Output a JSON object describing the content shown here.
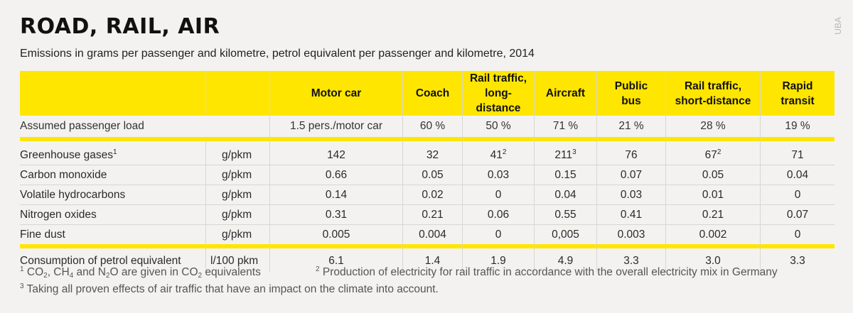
{
  "title": "ROAD, RAIL, AIR",
  "subtitle": "Emissions in grams per passenger and kilometre, petrol equivalent per passenger and kilometre, 2014",
  "source": "UBA",
  "table": {
    "columns": [
      {
        "line1": "Motor car",
        "line2": ""
      },
      {
        "line1": "Coach",
        "line2": ""
      },
      {
        "line1": "Rail traffic,",
        "line2": "long-distance"
      },
      {
        "line1": "Aircraft",
        "line2": ""
      },
      {
        "line1": "Public",
        "line2": "bus"
      },
      {
        "line1": "Rail traffic,",
        "line2": "short-distance"
      },
      {
        "line1": "Rapid",
        "line2": "transit"
      }
    ],
    "load": {
      "label": "Assumed passenger load",
      "values": [
        "1.5 pers./motor car",
        "60 %",
        "50 %",
        "71 %",
        "21 %",
        "28 %",
        "19 %"
      ]
    },
    "rows": [
      {
        "label": "Greenhouse gases",
        "label_sup": "1",
        "unit": "g/pkm",
        "values": [
          "142",
          "32",
          "41",
          "211",
          "76",
          "67",
          "71"
        ],
        "sups": [
          "",
          "",
          "2",
          "3",
          "",
          "2",
          ""
        ]
      },
      {
        "label": "Carbon monoxide",
        "label_sup": "",
        "unit": "g/pkm",
        "values": [
          "0.66",
          "0.05",
          "0.03",
          "0.15",
          "0.07",
          "0.05",
          "0.04"
        ],
        "sups": [
          "",
          "",
          "",
          "",
          "",
          "",
          ""
        ]
      },
      {
        "label": "Volatile hydrocarbons",
        "label_sup": "",
        "unit": "g/pkm",
        "values": [
          "0.14",
          "0.02",
          "0",
          "0.04",
          "0.03",
          "0.01",
          "0"
        ],
        "sups": [
          "",
          "",
          "",
          "",
          "",
          "",
          ""
        ]
      },
      {
        "label": "Nitrogen oxides",
        "label_sup": "",
        "unit": "g/pkm",
        "values": [
          "0.31",
          "0.21",
          "0.06",
          "0.55",
          "0.41",
          "0.21",
          "0.07"
        ],
        "sups": [
          "",
          "",
          "",
          "",
          "",
          "",
          ""
        ]
      },
      {
        "label": "Fine dust",
        "label_sup": "",
        "unit": "g/pkm",
        "values": [
          "0.005",
          "0.004",
          "0",
          "0,005",
          "0.003",
          "0.002",
          "0"
        ],
        "sups": [
          "",
          "",
          "",
          "",
          "",
          "",
          ""
        ]
      }
    ],
    "consumption": {
      "label": "Consumption of petrol equivalent",
      "unit": "l/100 pkm",
      "values": [
        "6.1",
        "1.4",
        "1.9",
        "4.9",
        "3.3",
        "3.0",
        "3.3"
      ]
    }
  },
  "footnotes": {
    "fn1": {
      "mark": "1",
      "co": "CO",
      "co_sub": "2",
      "sep1": ", CH",
      "ch_sub": "4",
      "sep2": " and N",
      "n_sub": "2",
      "mid": "O are given in CO",
      "end_sub": "2",
      "tail": " equivalents"
    },
    "fn2": {
      "mark": "2",
      "text": " Production of electricity for rail traffic in accordance with the overall electricity mix in Germany"
    },
    "fn3": {
      "mark": "3",
      "text": " Taking all proven effects of air traffic that have an impact on the climate into account."
    }
  }
}
